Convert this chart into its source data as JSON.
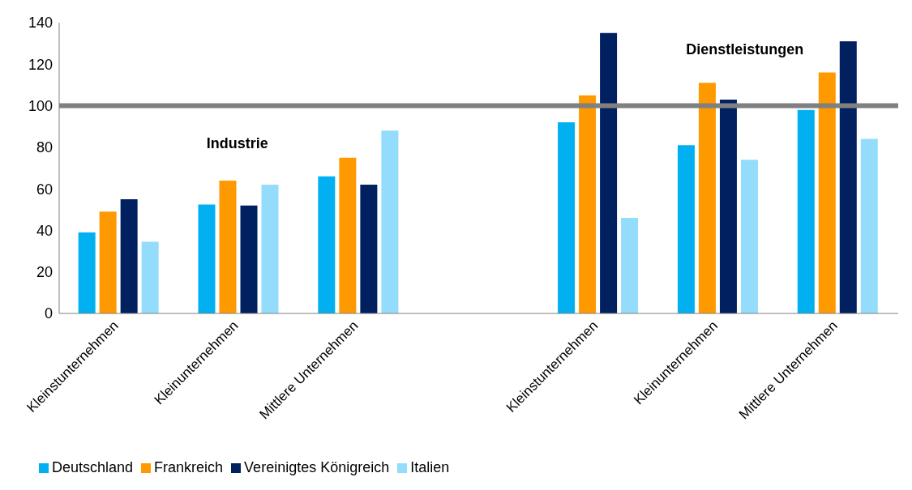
{
  "chart_data": {
    "type": "bar",
    "categories": [
      "Kleinstunternehmen",
      "Kleinunternehmen",
      "Mittlere Unternehmen",
      null,
      "Kleinstunternehmen",
      "Kleinunternehmen",
      "Mittlere Unternehmen"
    ],
    "series": [
      {
        "name": "Deutschland",
        "color": "#00b0f0",
        "values": [
          39,
          52.5,
          66,
          null,
          92,
          81,
          98
        ]
      },
      {
        "name": "Frankreich",
        "color": "#ff9900",
        "values": [
          49,
          64,
          75,
          null,
          105,
          111,
          116
        ]
      },
      {
        "name": "Vereinigtes Königreich",
        "color": "#002060",
        "values": [
          55,
          52,
          62,
          null,
          135,
          103,
          131
        ]
      },
      {
        "name": "Italien",
        "color": "#93dcfb",
        "values": [
          34.5,
          62,
          88,
          null,
          46,
          74,
          84
        ]
      }
    ],
    "ylim": [
      0,
      140
    ],
    "yticks": [
      0,
      20,
      40,
      60,
      80,
      100,
      120,
      140
    ],
    "grid": false,
    "legend": "bottom",
    "ref_lines": [
      {
        "axis": "y",
        "value": 100,
        "color": "#808080"
      }
    ],
    "annotations": [
      "Industrie",
      "Dienstleistungen"
    ]
  }
}
